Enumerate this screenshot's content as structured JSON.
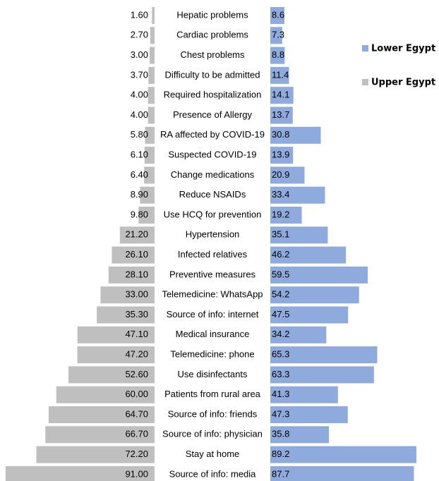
{
  "chart_data": {
    "type": "butterfly-bar",
    "categories": [
      "Hepatic problems",
      "Cardiac problems",
      "Chest problems",
      "Difficulty to be admitted",
      "Required hospitalization",
      "Presence of Allergy",
      "RA affected by COVID-19",
      "Suspected COVID-19",
      "Change medications",
      "Reduce NSAIDs",
      "Use HCQ for prevention",
      "Hypertension",
      "Infected relatives",
      "Preventive measures",
      "Telemedicine: WhatsApp",
      "Source of info: internet",
      "Medical insurance",
      "Telemedicine: phone",
      "Use disinfectants",
      "Patients from rural area",
      "Source of  info: friends",
      "Source of info: physician",
      "Stay at home",
      "Source of info: media"
    ],
    "series": [
      {
        "name": "Lower Egypt",
        "color": "#8faadc",
        "values": [
          8.6,
          7.3,
          8.8,
          11.4,
          14.1,
          13.7,
          30.8,
          13.9,
          20.9,
          33.4,
          19.2,
          35.1,
          46.2,
          59.5,
          54.2,
          47.5,
          34.2,
          65.3,
          63.3,
          41.3,
          47.3,
          35.8,
          89.2,
          87.7
        ]
      },
      {
        "name": "Upper Egypt",
        "color": "#bfbfbf",
        "values": [
          1.6,
          2.7,
          3,
          3.7,
          4,
          4,
          5.8,
          6.1,
          6.4,
          8.9,
          9.8,
          21.2,
          26.1,
          28.1,
          33,
          35.3,
          47.1,
          47.2,
          52.6,
          60,
          64.7,
          66.7,
          72.2,
          91
        ],
        "value_labels": [
          "1.60",
          "2.70",
          "3.00",
          "3.70",
          "4.00",
          "4.00",
          "5.80",
          "6.10",
          "6.40",
          "8.90",
          "9.80",
          "21.20",
          "26.10",
          "28.10",
          "33.00",
          "35.30",
          "47.10",
          "47.20",
          "52.60",
          "60.00",
          "64.70",
          "66.70",
          "72.20",
          "91.00"
        ]
      }
    ],
    "legend": "right"
  }
}
